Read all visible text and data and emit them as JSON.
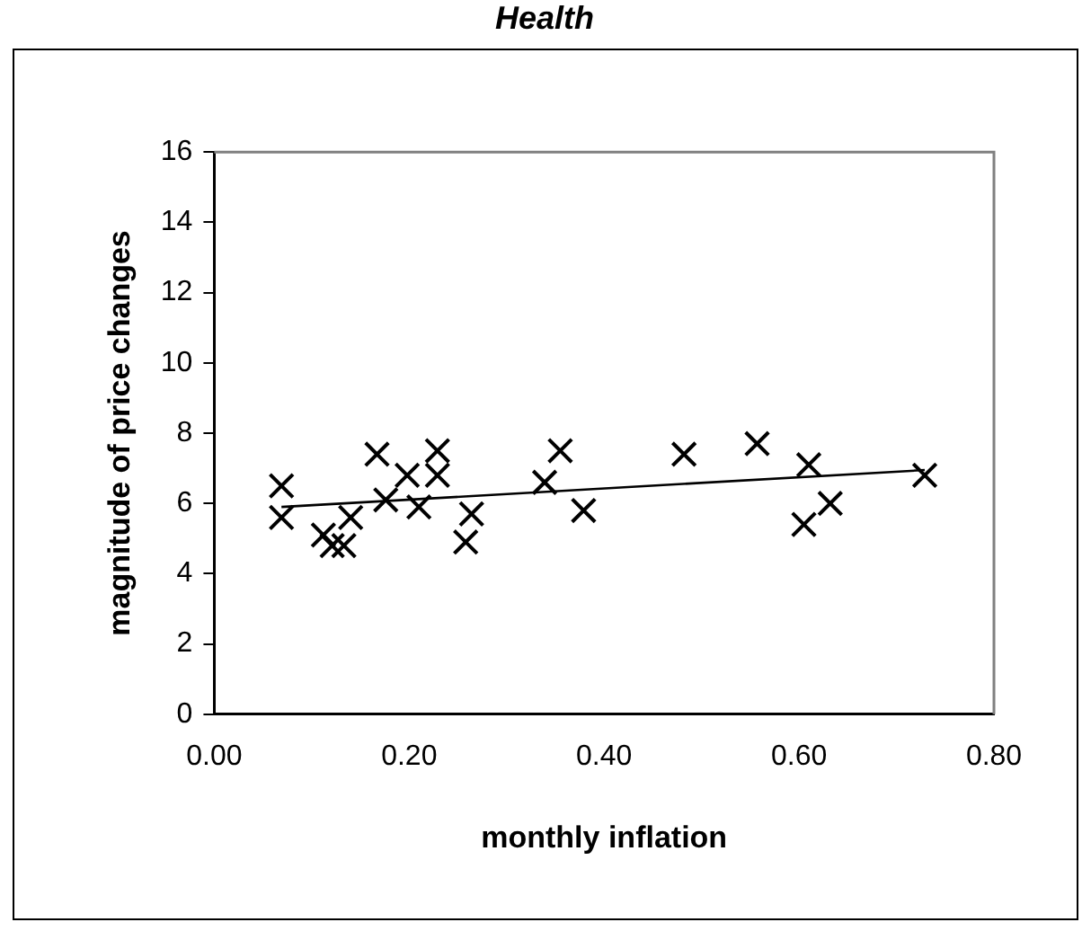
{
  "chart_data": {
    "type": "scatter",
    "title": "Health",
    "xlabel": "monthly inflation",
    "ylabel": "magnitude of price changes",
    "xlim": [
      0,
      0.8
    ],
    "xticks": [
      {
        "value": 0,
        "label": "0.00"
      },
      {
        "value": 0.2,
        "label": "0.20"
      },
      {
        "value": 0.4,
        "label": "0.40"
      },
      {
        "value": 0.6,
        "label": "0.60"
      },
      {
        "value": 0.8,
        "label": "0.80"
      }
    ],
    "ylim": [
      0,
      16
    ],
    "yticks": [
      0,
      2,
      4,
      6,
      8,
      10,
      12,
      14,
      16
    ],
    "grid": false,
    "legend": false,
    "series": [
      {
        "marker": "cross",
        "color": "#000000",
        "x": [
          0.069,
          0.069,
          0.112,
          0.121,
          0.133,
          0.14,
          0.167,
          0.176,
          0.198,
          0.21,
          0.229,
          0.229,
          0.258,
          0.264,
          0.339,
          0.355,
          0.379,
          0.482,
          0.557,
          0.61,
          0.605,
          0.632,
          0.729
        ],
        "values": [
          6.5,
          5.6,
          5.1,
          4.8,
          4.8,
          5.6,
          7.4,
          6.1,
          6.8,
          5.9,
          7.5,
          6.8,
          4.9,
          5.7,
          6.6,
          7.5,
          5.8,
          7.4,
          7.7,
          7.1,
          5.4,
          6.0,
          6.8
        ]
      },
      {
        "type": "line",
        "marker": "none",
        "color": "#000000",
        "x": [
          0.069,
          0.729
        ],
        "values": [
          5.9,
          6.95
        ]
      }
    ]
  }
}
